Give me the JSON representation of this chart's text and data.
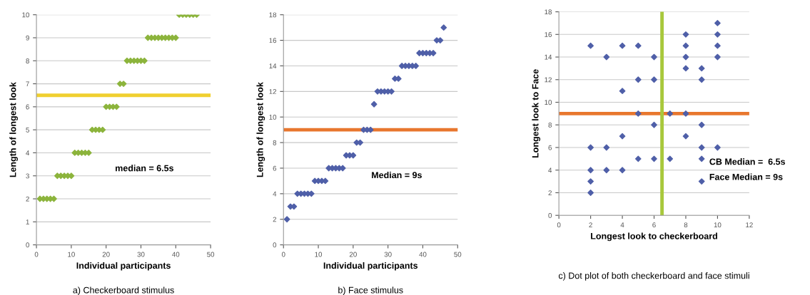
{
  "chart_data": [
    {
      "type": "scatter",
      "xlabel": "Individual participants",
      "ylabel": "Length of longest look",
      "xlim": [
        0,
        50
      ],
      "xticks": [
        0,
        10,
        20,
        30,
        40,
        50
      ],
      "ylim": [
        0,
        10
      ],
      "yticks": [
        0,
        1,
        2,
        3,
        4,
        5,
        6,
        7,
        8,
        9,
        10
      ],
      "grid": "y",
      "marker": "diamond",
      "series": [
        {
          "color": "#8cb43c",
          "x": [
            1,
            2,
            3,
            4,
            5,
            6,
            7,
            8,
            9,
            10,
            11,
            12,
            13,
            14,
            15,
            16,
            17,
            18,
            19,
            20,
            21,
            22,
            23,
            24,
            25,
            26,
            27,
            28,
            29,
            30,
            31,
            32,
            33,
            34,
            35,
            36,
            37,
            38,
            39,
            40,
            41,
            42,
            43,
            44,
            45,
            46
          ],
          "values": [
            2,
            2,
            2,
            2,
            2,
            3,
            3,
            3,
            3,
            3,
            4,
            4,
            4,
            4,
            4,
            5,
            5,
            5,
            5,
            6,
            6,
            6,
            6,
            7,
            7,
            8,
            8,
            8,
            8,
            8,
            8,
            9,
            9,
            9,
            9,
            9,
            9,
            9,
            9,
            9,
            10,
            10,
            10,
            10,
            10,
            10
          ]
        }
      ],
      "ref_lines": [
        {
          "axis": "y",
          "value": 6.5,
          "color": "#f0d030"
        }
      ],
      "annotations": [
        "median = 6.5s",
        "a) Checkerboard stimulus"
      ]
    },
    {
      "type": "scatter",
      "xlabel": "Individual participants",
      "ylabel": "Length of longest look",
      "xlim": [
        0,
        50
      ],
      "xticks": [
        0,
        10,
        20,
        30,
        40,
        50
      ],
      "ylim": [
        0,
        18
      ],
      "yticks": [
        0,
        2,
        4,
        6,
        8,
        10,
        12,
        14,
        16,
        18
      ],
      "grid": "y",
      "marker": "diamond",
      "series": [
        {
          "color": "#4f5fa8",
          "x": [
            1,
            2,
            3,
            4,
            5,
            6,
            7,
            8,
            9,
            10,
            11,
            12,
            13,
            14,
            15,
            16,
            17,
            18,
            19,
            20,
            21,
            22,
            23,
            24,
            25,
            26,
            27,
            28,
            29,
            30,
            31,
            32,
            33,
            34,
            35,
            36,
            37,
            38,
            39,
            40,
            41,
            42,
            43,
            44,
            45,
            46
          ],
          "values": [
            2,
            3,
            3,
            4,
            4,
            4,
            4,
            4,
            5,
            5,
            5,
            5,
            6,
            6,
            6,
            6,
            6,
            7,
            7,
            7,
            8,
            8,
            9,
            9,
            9,
            11,
            12,
            12,
            12,
            12,
            12,
            13,
            13,
            14,
            14,
            14,
            14,
            14,
            15,
            15,
            15,
            15,
            15,
            16,
            16,
            17
          ]
        }
      ],
      "ref_lines": [
        {
          "axis": "y",
          "value": 9,
          "color": "#e8772e"
        }
      ],
      "annotations": [
        "Median = 9s",
        "b) Face stimulus"
      ]
    },
    {
      "type": "scatter",
      "xlabel": "Longest look to checkerboard",
      "ylabel": "Longest look to Face",
      "xlim": [
        0,
        12
      ],
      "xticks": [
        0,
        2,
        4,
        6,
        8,
        10,
        12
      ],
      "ylim": [
        0,
        18
      ],
      "yticks": [
        0,
        2,
        4,
        6,
        8,
        10,
        12,
        14,
        16,
        18
      ],
      "grid": "y",
      "marker": "diamond",
      "series": [
        {
          "color": "#4f5fa8",
          "x": [
            2,
            2,
            2,
            2,
            2,
            3,
            3,
            3,
            4,
            4,
            4,
            4,
            5,
            5,
            5,
            5,
            6,
            6,
            6,
            6,
            7,
            7,
            8,
            8,
            8,
            8,
            8,
            8,
            9,
            9,
            9,
            9,
            9,
            9,
            10,
            10,
            10,
            10,
            10
          ],
          "values": [
            15,
            6,
            4,
            3,
            2,
            14,
            6,
            4,
            15,
            11,
            7,
            4,
            15,
            12,
            9,
            5,
            14,
            12,
            8,
            5,
            9,
            5,
            16,
            15,
            14,
            13,
            9,
            7,
            13,
            12,
            8,
            6,
            5,
            3,
            17,
            16,
            15,
            14,
            6
          ]
        }
      ],
      "ref_lines": [
        {
          "axis": "y",
          "value": 9,
          "color": "#e8772e"
        },
        {
          "axis": "x",
          "value": 6.5,
          "color": "#a8c83c"
        }
      ],
      "annotations": [
        "CB Median =  6.5s",
        "Face Median = 9s",
        "c) Dot plot of both checkerboard and face stimuli"
      ]
    }
  ]
}
